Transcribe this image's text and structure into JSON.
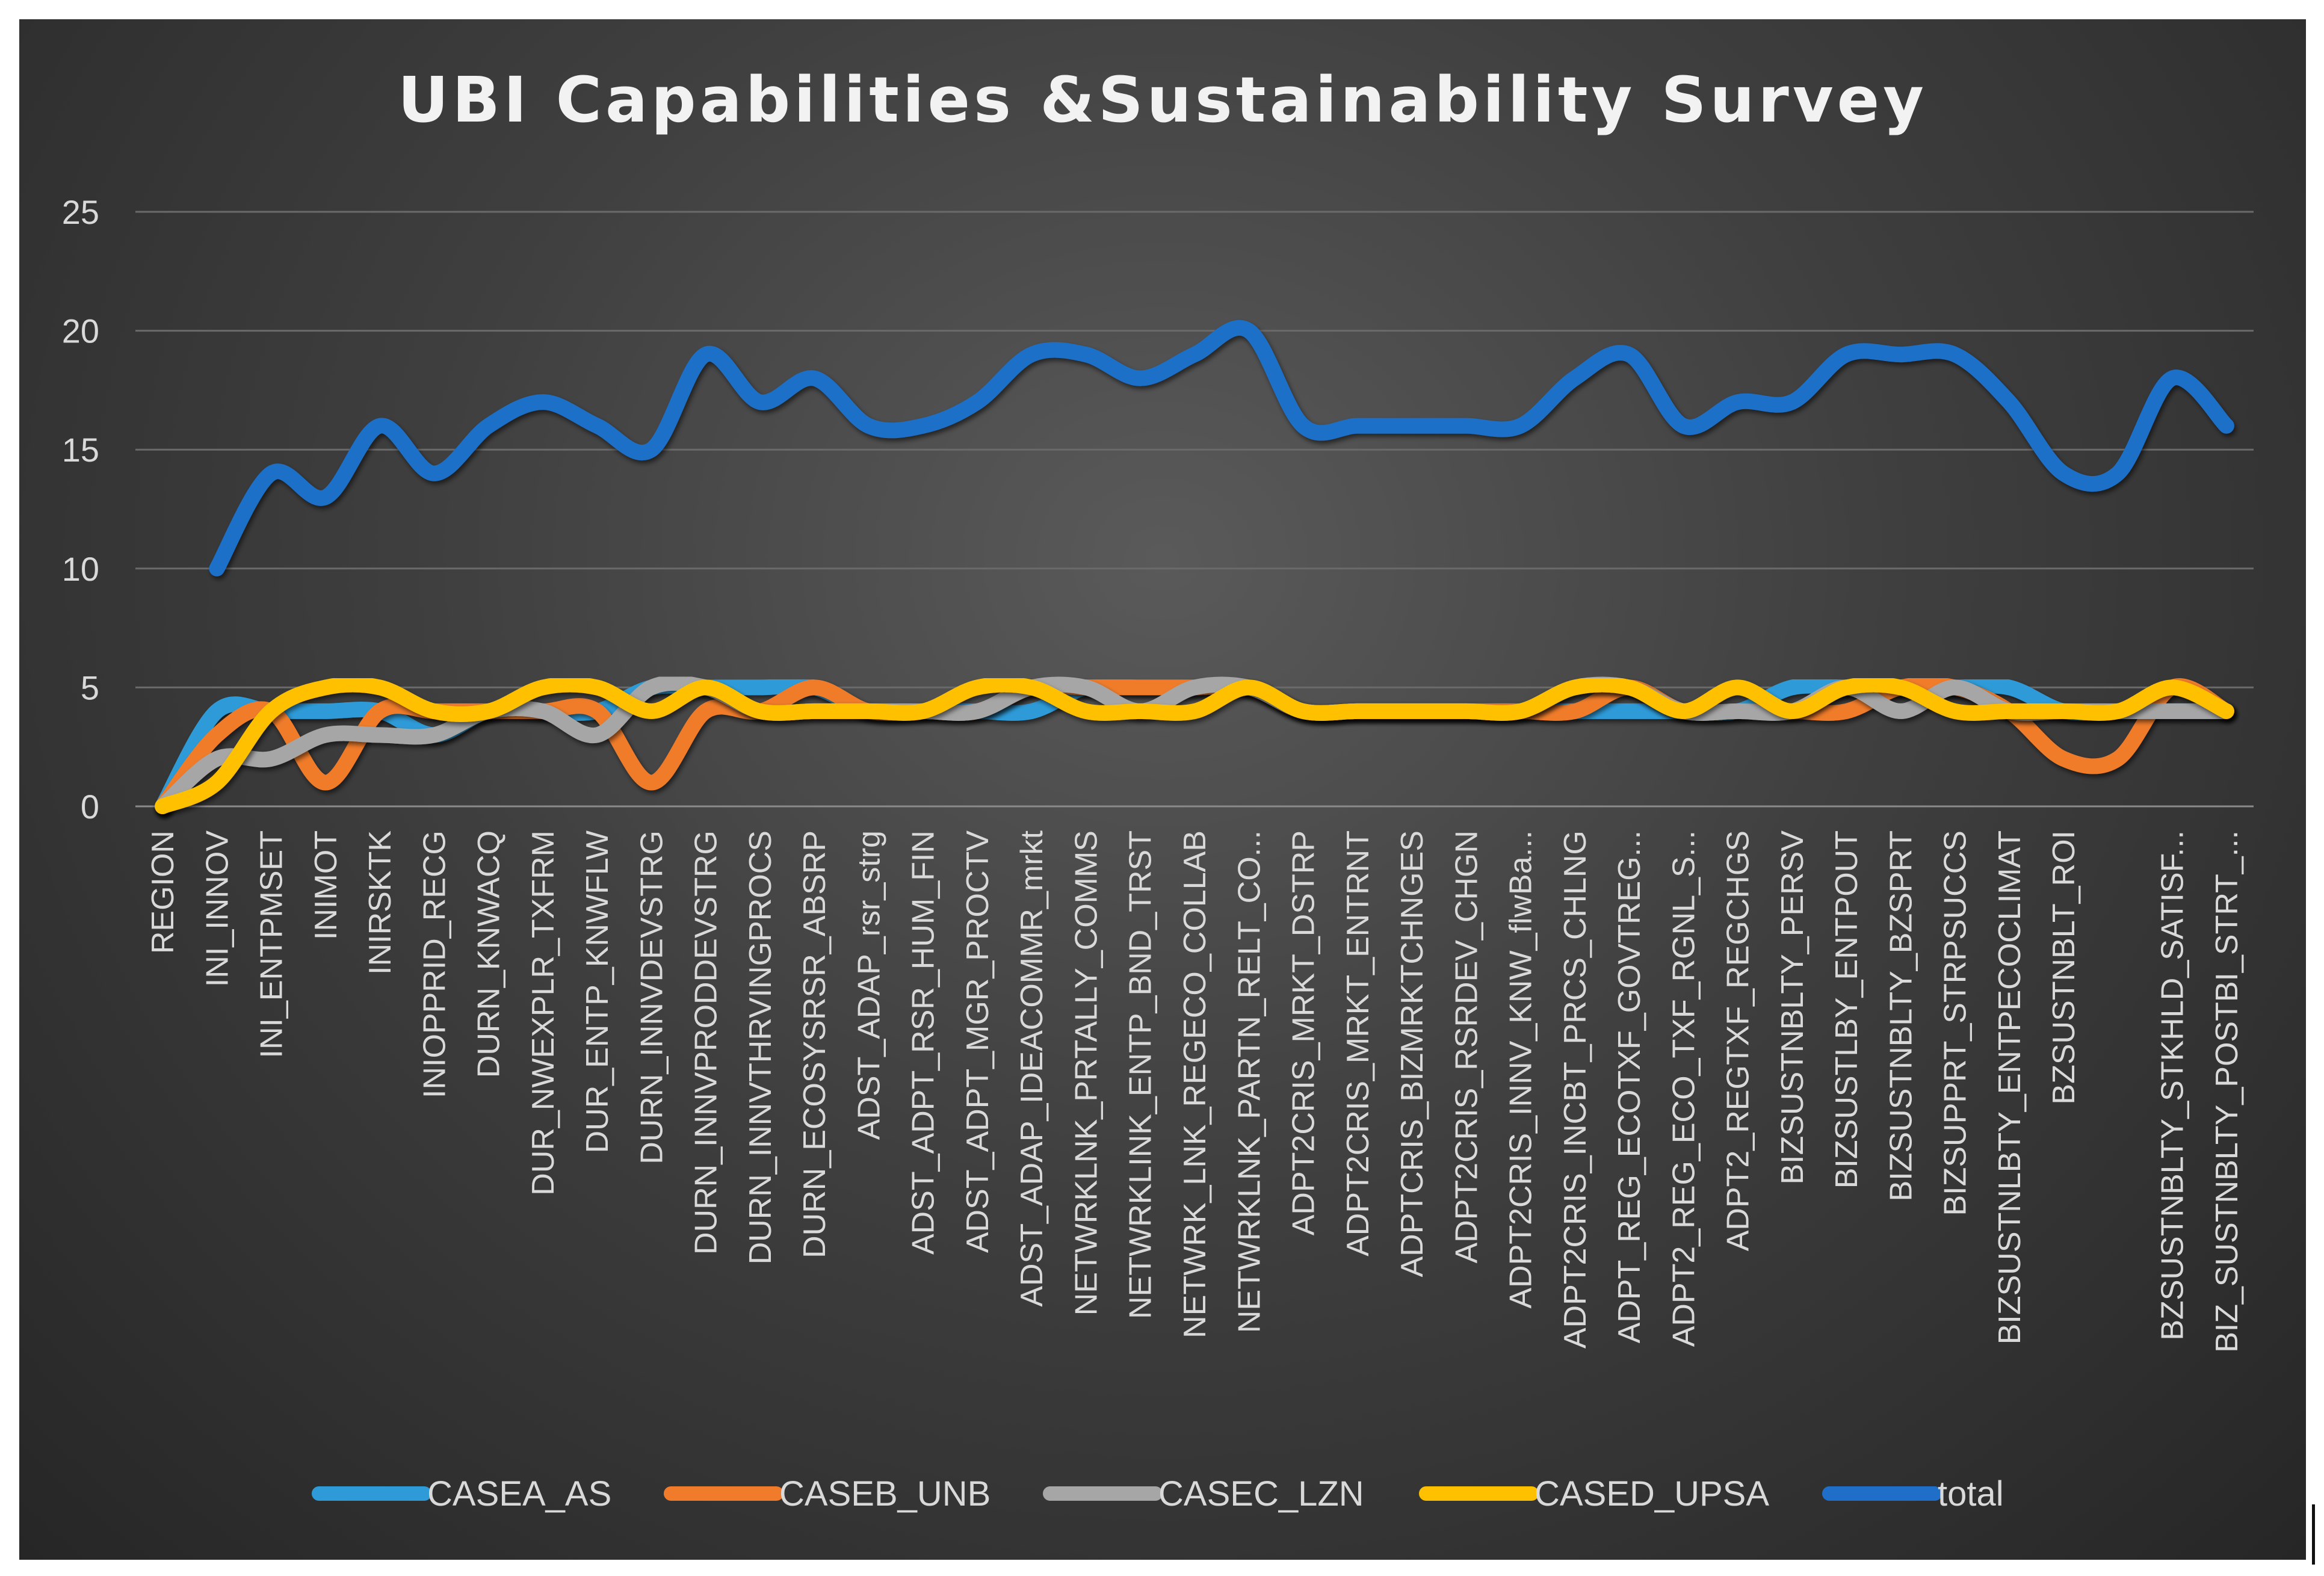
{
  "chart_data": {
    "type": "line",
    "title": "UBI Capabilities &Sustainability Survey",
    "xlabel": "",
    "ylabel": "",
    "ylim": [
      0,
      25
    ],
    "yticks": [
      0,
      5,
      10,
      15,
      20,
      25
    ],
    "grid": true,
    "legend_position": "bottom",
    "categories": [
      "REGION",
      "INI_INNOV",
      "INI_ENTPMSET",
      "INIMOT",
      "INIRSKTK",
      "INIOPPRID_RECG",
      "DURN_KNWACQ",
      "DUR_NWEXPLR_TXFRM",
      "DUR_ENTP_KNWFLW",
      "DURN_INNVDEVSTRG",
      "DURN_INNVPRODDEVSTRG",
      "DURN_INNVTHRVINGPROCS",
      "DURN_ECOSYSRSR_ABSRP",
      "ADST_ADAP_rsr_strg",
      "ADST_ADPT_RSR_HUM_FIN",
      "ADST_ADPT_MGR_PROCTV",
      "ADST_ADAP_IDEACOMMR_mrkt",
      "NETWRKLNK_PRTALLY_COMMS",
      "NETWRKLINK_ENTP_BND_TRST",
      "NETWRK_LNK_REGECO_COLLAB",
      "NETWRKLNK_PARTN_RELT_CO...",
      "ADPT2CRIS_MRKT_DSTRP",
      "ADPT2CRIS_MRKT_ENTRNT",
      "ADPTCRIS_BIZMRKTCHNGES",
      "ADPT2CRIS_RSRDEV_CHGN",
      "ADPT2CRIS_INNV_KNW_flwBa...",
      "ADPT2CRIS_INCBT_PRCS_CHLNG",
      "ADPT_REG_ECOTXF_GOVTREG...",
      "ADPT2_REG_ECO_TXF_RGNL_S...",
      "ADPT2_REGTXF_REGCHGS",
      "BIZSUSTNBLTY_PERSV",
      "BIZSUSTLBY_ENTPOUT",
      "BIZSUSTNBLTY_BZSPRT",
      "BIZSUPPRT_STRPSUCCS",
      "BIZSUSTNLBTY_ENTPECOCLIMAT",
      "BZSUSTNBLT_ROI",
      "",
      "BZSUSTNBLTY_STKHLD_SATISF...",
      "BIZ_SUSTNBLTY_POSTBI_STRT_..."
    ],
    "series": [
      {
        "name": "CASEA_AS",
        "color": "#2E9BD8",
        "values": [
          0,
          4,
          4,
          4,
          4,
          3,
          4,
          4,
          4,
          5,
          5,
          5,
          5,
          4,
          4,
          4,
          4,
          5,
          5,
          5,
          5,
          4,
          4,
          4,
          4,
          4,
          4,
          4,
          4,
          4,
          5,
          5,
          5,
          5,
          5,
          4,
          4,
          4,
          4
        ]
      },
      {
        "name": "CASEB_UNB",
        "color": "#F07C2B",
        "values": [
          0,
          3,
          4,
          1,
          4,
          4,
          4,
          4,
          4,
          1,
          4,
          4,
          5,
          4,
          4,
          4,
          5,
          5,
          5,
          5,
          5,
          4,
          4,
          4,
          4,
          4,
          4,
          5,
          4,
          4,
          4,
          4,
          5,
          5,
          4,
          2,
          2,
          5,
          4
        ]
      },
      {
        "name": "CASEC_LZN",
        "color": "#A6A6A6",
        "values": [
          0,
          2,
          2,
          3,
          3,
          3,
          4,
          4,
          3,
          5,
          5,
          4,
          4,
          4,
          4,
          4,
          5,
          5,
          4,
          5,
          5,
          4,
          4,
          4,
          4,
          4,
          5,
          5,
          4,
          4,
          4,
          5,
          4,
          5,
          4,
          4,
          4,
          4,
          4
        ]
      },
      {
        "name": "CASED_UPSA",
        "color": "#FFC000",
        "values": [
          0,
          1,
          4,
          5,
          5,
          4,
          4,
          5,
          5,
          4,
          5,
          4,
          4,
          4,
          4,
          5,
          5,
          4,
          4,
          4,
          5,
          4,
          4,
          4,
          4,
          4,
          5,
          5,
          4,
          5,
          4,
          5,
          5,
          4,
          4,
          4,
          4,
          5,
          4
        ]
      },
      {
        "name": "total",
        "color": "#1F6FC8",
        "values": [
          null,
          10,
          14,
          13,
          16,
          14,
          16,
          17,
          16,
          15,
          19,
          17,
          18,
          16,
          16,
          17,
          19,
          19,
          18,
          19,
          20,
          16,
          16,
          16,
          16,
          16,
          18,
          19,
          16,
          17,
          17,
          19,
          19,
          19,
          17,
          14,
          14,
          18,
          16
        ]
      }
    ]
  }
}
